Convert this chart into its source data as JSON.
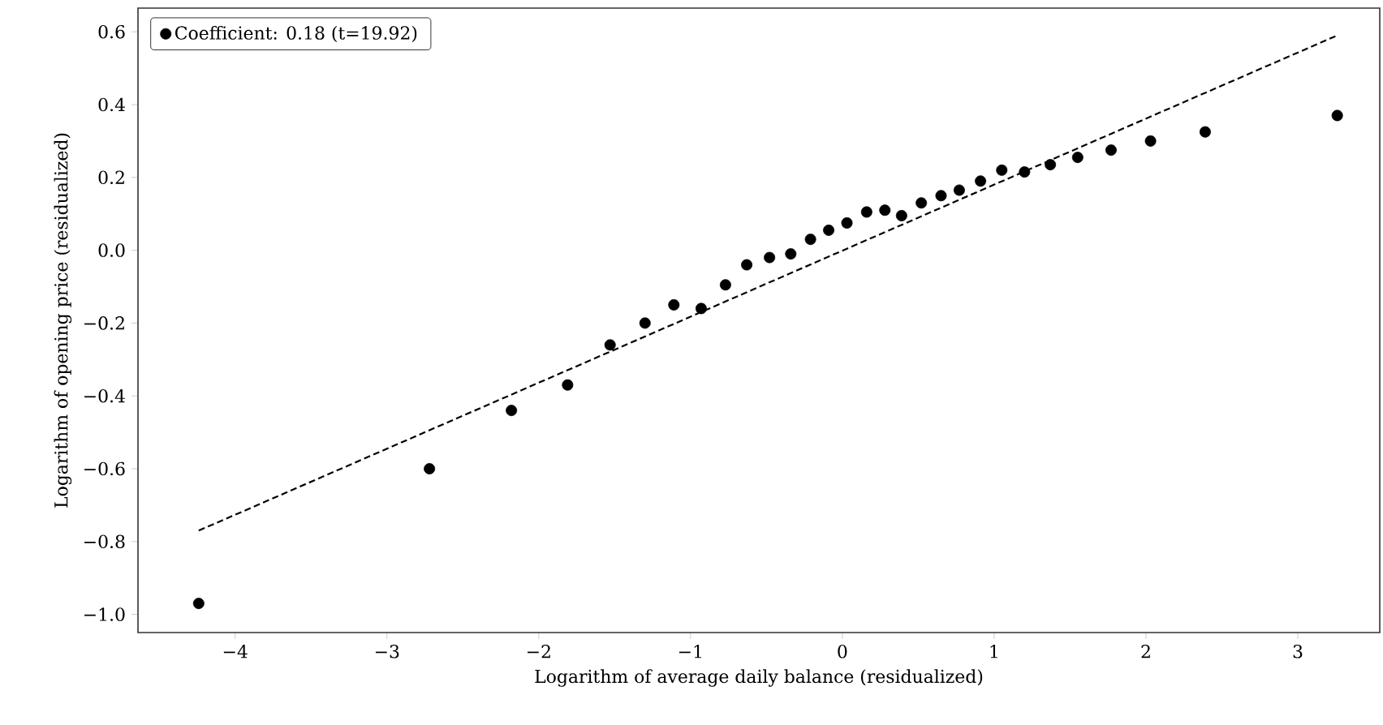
{
  "chart_data": {
    "type": "scatter",
    "xlabel": "Logarithm of average daily balance (residualized)",
    "ylabel": "Logarithm of opening price (residualized)",
    "xlim": [
      -4.64,
      3.54
    ],
    "ylim": [
      -1.05,
      0.665
    ],
    "xticks": [
      {
        "value": -4,
        "label": "−4"
      },
      {
        "value": -3,
        "label": "−3"
      },
      {
        "value": -2,
        "label": "−2"
      },
      {
        "value": -1,
        "label": "−1"
      },
      0,
      1,
      2,
      3
    ],
    "yticks": [
      {
        "value": -1.0,
        "label": "−1.0"
      },
      {
        "value": -0.8,
        "label": "−0.8"
      },
      {
        "value": -0.6,
        "label": "−0.6"
      },
      {
        "value": -0.4,
        "label": "−0.4"
      },
      {
        "value": -0.2,
        "label": "−0.2"
      },
      {
        "value": 0.0,
        "label": "0.0"
      },
      {
        "value": 0.2,
        "label": "0.2"
      },
      {
        "value": 0.4,
        "label": "0.4"
      },
      {
        "value": 0.6,
        "label": "0.6"
      }
    ],
    "legend": "top left",
    "series": [
      {
        "name": "Coefficient: 0.18 (t=19.92)",
        "color": "#000000",
        "marker": "circle",
        "x": [
          -4.24,
          -2.72,
          -2.18,
          -1.81,
          -1.53,
          -1.3,
          -1.11,
          -0.93,
          -0.77,
          -0.63,
          -0.48,
          -0.34,
          -0.21,
          -0.09,
          0.03,
          0.16,
          0.28,
          0.39,
          0.52,
          0.65,
          0.77,
          0.91,
          1.05,
          1.2,
          1.37,
          1.55,
          1.77,
          2.03,
          2.39,
          3.26
        ],
        "values": [
          -0.97,
          -0.6,
          -0.44,
          -0.37,
          -0.26,
          -0.2,
          -0.15,
          -0.16,
          -0.095,
          -0.04,
          -0.02,
          -0.01,
          0.03,
          0.055,
          0.075,
          0.105,
          0.11,
          0.095,
          0.13,
          0.15,
          0.165,
          0.19,
          0.22,
          0.215,
          0.235,
          0.255,
          0.275,
          0.3,
          0.325,
          0.37
        ]
      },
      {
        "type": "line",
        "color": "#000000",
        "line_style": "dashed",
        "marker": "none",
        "x": [
          -4.24,
          3.26
        ],
        "values": [
          -0.77,
          0.59
        ]
      }
    ]
  }
}
